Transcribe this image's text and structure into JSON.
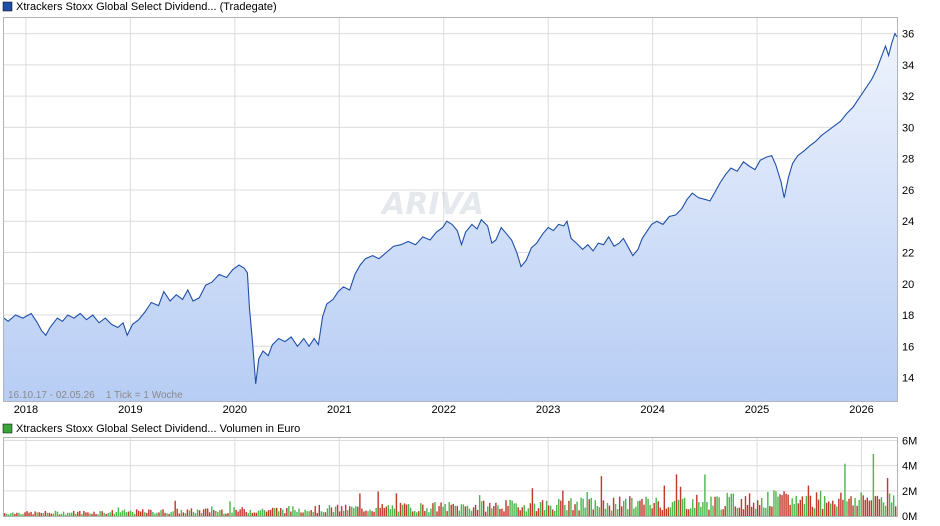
{
  "chart_data": [
    {
      "type": "area",
      "title": "Xtrackers Stoxx Global Select Dividend... (Tradegate)",
      "colors": {
        "line": "#1f4fa8",
        "fill_top": "#eef3fd",
        "fill_bottom": "#b7cdf4",
        "legend_swatch": "#1f4fa8"
      },
      "range_label": "16.10.17 - 02.05.26    1 Tick = 1 Woche",
      "watermark": "ARIVA",
      "ylim": [
        12.5,
        37
      ],
      "yticks": [
        "14",
        "16",
        "18",
        "20",
        "22",
        "24",
        "26",
        "28",
        "30",
        "32",
        "34",
        "36"
      ],
      "xlim": [
        2017.79,
        2026.34
      ],
      "xticks": [
        "2018",
        "2019",
        "2020",
        "2021",
        "2022",
        "2023",
        "2024",
        "2025",
        "2026"
      ],
      "grid": true,
      "series": [
        {
          "values": [
            [
              2017.79,
              17.8
            ],
            [
              2017.83,
              17.6
            ],
            [
              2017.9,
              18.0
            ],
            [
              2017.97,
              17.8
            ],
            [
              2018.05,
              18.1
            ],
            [
              2018.11,
              17.5
            ],
            [
              2018.15,
              17.0
            ],
            [
              2018.19,
              16.7
            ],
            [
              2018.23,
              17.2
            ],
            [
              2018.3,
              17.8
            ],
            [
              2018.35,
              17.6
            ],
            [
              2018.4,
              18.0
            ],
            [
              2018.46,
              17.8
            ],
            [
              2018.52,
              18.1
            ],
            [
              2018.58,
              17.7
            ],
            [
              2018.64,
              18.0
            ],
            [
              2018.7,
              17.5
            ],
            [
              2018.76,
              17.8
            ],
            [
              2018.82,
              17.4
            ],
            [
              2018.88,
              17.2
            ],
            [
              2018.93,
              17.5
            ],
            [
              2018.97,
              16.7
            ],
            [
              2019.02,
              17.4
            ],
            [
              2019.08,
              17.7
            ],
            [
              2019.14,
              18.2
            ],
            [
              2019.2,
              18.8
            ],
            [
              2019.27,
              18.6
            ],
            [
              2019.32,
              19.5
            ],
            [
              2019.38,
              18.9
            ],
            [
              2019.44,
              19.3
            ],
            [
              2019.5,
              19.0
            ],
            [
              2019.55,
              19.6
            ],
            [
              2019.6,
              18.9
            ],
            [
              2019.66,
              19.1
            ],
            [
              2019.72,
              19.9
            ],
            [
              2019.78,
              20.1
            ],
            [
              2019.85,
              20.6
            ],
            [
              2019.92,
              20.4
            ],
            [
              2019.98,
              20.9
            ],
            [
              2020.04,
              21.2
            ],
            [
              2020.09,
              21.0
            ],
            [
              2020.12,
              20.7
            ],
            [
              2020.14,
              18.5
            ],
            [
              2020.17,
              16.2
            ],
            [
              2020.2,
              13.6
            ],
            [
              2020.23,
              15.2
            ],
            [
              2020.27,
              15.7
            ],
            [
              2020.32,
              15.4
            ],
            [
              2020.36,
              16.1
            ],
            [
              2020.42,
              16.5
            ],
            [
              2020.48,
              16.3
            ],
            [
              2020.54,
              16.6
            ],
            [
              2020.6,
              16.0
            ],
            [
              2020.66,
              16.5
            ],
            [
              2020.71,
              16.0
            ],
            [
              2020.76,
              16.5
            ],
            [
              2020.8,
              16.1
            ],
            [
              2020.84,
              17.9
            ],
            [
              2020.88,
              18.7
            ],
            [
              2020.94,
              19.0
            ],
            [
              2020.99,
              19.5
            ],
            [
              2021.04,
              19.8
            ],
            [
              2021.1,
              19.6
            ],
            [
              2021.15,
              20.6
            ],
            [
              2021.2,
              21.2
            ],
            [
              2021.25,
              21.6
            ],
            [
              2021.32,
              21.8
            ],
            [
              2021.38,
              21.6
            ],
            [
              2021.45,
              22.0
            ],
            [
              2021.52,
              22.4
            ],
            [
              2021.59,
              22.5
            ],
            [
              2021.66,
              22.7
            ],
            [
              2021.73,
              22.5
            ],
            [
              2021.8,
              23.0
            ],
            [
              2021.87,
              22.8
            ],
            [
              2021.93,
              23.3
            ],
            [
              2021.99,
              23.6
            ],
            [
              2022.03,
              24.0
            ],
            [
              2022.08,
              23.8
            ],
            [
              2022.13,
              23.4
            ],
            [
              2022.17,
              22.5
            ],
            [
              2022.21,
              23.3
            ],
            [
              2022.27,
              23.8
            ],
            [
              2022.32,
              23.5
            ],
            [
              2022.36,
              24.1
            ],
            [
              2022.42,
              23.7
            ],
            [
              2022.46,
              22.6
            ],
            [
              2022.5,
              22.8
            ],
            [
              2022.55,
              23.6
            ],
            [
              2022.6,
              23.2
            ],
            [
              2022.65,
              22.8
            ],
            [
              2022.7,
              22.0
            ],
            [
              2022.74,
              21.1
            ],
            [
              2022.79,
              21.5
            ],
            [
              2022.84,
              22.3
            ],
            [
              2022.89,
              22.6
            ],
            [
              2022.95,
              23.2
            ],
            [
              2023.0,
              23.6
            ],
            [
              2023.05,
              23.4
            ],
            [
              2023.1,
              23.8
            ],
            [
              2023.15,
              23.7
            ],
            [
              2023.18,
              24.0
            ],
            [
              2023.22,
              22.9
            ],
            [
              2023.27,
              22.6
            ],
            [
              2023.33,
              22.2
            ],
            [
              2023.38,
              22.5
            ],
            [
              2023.43,
              22.1
            ],
            [
              2023.48,
              22.6
            ],
            [
              2023.53,
              22.5
            ],
            [
              2023.58,
              23.0
            ],
            [
              2023.63,
              22.4
            ],
            [
              2023.68,
              22.6
            ],
            [
              2023.72,
              22.9
            ],
            [
              2023.77,
              22.3
            ],
            [
              2023.81,
              21.8
            ],
            [
              2023.86,
              22.2
            ],
            [
              2023.9,
              22.9
            ],
            [
              2023.95,
              23.4
            ],
            [
              2023.99,
              23.8
            ],
            [
              2024.04,
              24.0
            ],
            [
              2024.1,
              23.8
            ],
            [
              2024.16,
              24.3
            ],
            [
              2024.22,
              24.4
            ],
            [
              2024.28,
              24.8
            ],
            [
              2024.33,
              25.4
            ],
            [
              2024.38,
              25.8
            ],
            [
              2024.44,
              25.5
            ],
            [
              2024.5,
              25.4
            ],
            [
              2024.55,
              25.3
            ],
            [
              2024.6,
              25.9
            ],
            [
              2024.65,
              26.5
            ],
            [
              2024.7,
              27.0
            ],
            [
              2024.75,
              27.4
            ],
            [
              2024.81,
              27.2
            ],
            [
              2024.87,
              27.8
            ],
            [
              2024.93,
              27.5
            ],
            [
              2024.98,
              27.3
            ],
            [
              2025.03,
              27.9
            ],
            [
              2025.09,
              28.1
            ],
            [
              2025.14,
              28.2
            ],
            [
              2025.18,
              27.6
            ],
            [
              2025.23,
              26.5
            ],
            [
              2025.26,
              25.5
            ],
            [
              2025.3,
              26.8
            ],
            [
              2025.34,
              27.7
            ],
            [
              2025.39,
              28.2
            ],
            [
              2025.45,
              28.5
            ],
            [
              2025.5,
              28.8
            ],
            [
              2025.56,
              29.1
            ],
            [
              2025.62,
              29.5
            ],
            [
              2025.68,
              29.8
            ],
            [
              2025.74,
              30.1
            ],
            [
              2025.8,
              30.4
            ],
            [
              2025.86,
              30.9
            ],
            [
              2025.92,
              31.3
            ],
            [
              2025.98,
              31.9
            ],
            [
              2026.04,
              32.5
            ],
            [
              2026.1,
              33.1
            ],
            [
              2026.15,
              33.8
            ],
            [
              2026.19,
              34.5
            ],
            [
              2026.23,
              35.2
            ],
            [
              2026.26,
              34.6
            ],
            [
              2026.29,
              35.4
            ],
            [
              2026.32,
              36.0
            ],
            [
              2026.34,
              35.8
            ]
          ]
        }
      ]
    },
    {
      "type": "bar",
      "title": "Xtrackers Stoxx Global Select Dividend... Volumen in Euro",
      "colors": {
        "up": "#4cb84c",
        "down": "#c0392b",
        "legend_swatch": "#3aa63a"
      },
      "ylim": [
        0,
        6.2
      ],
      "yticks": [
        "0M",
        "2M",
        "4M",
        "6M"
      ],
      "xlim": [
        2017.79,
        2026.34
      ],
      "grid": true,
      "values": [],
      "directions": []
    }
  ]
}
